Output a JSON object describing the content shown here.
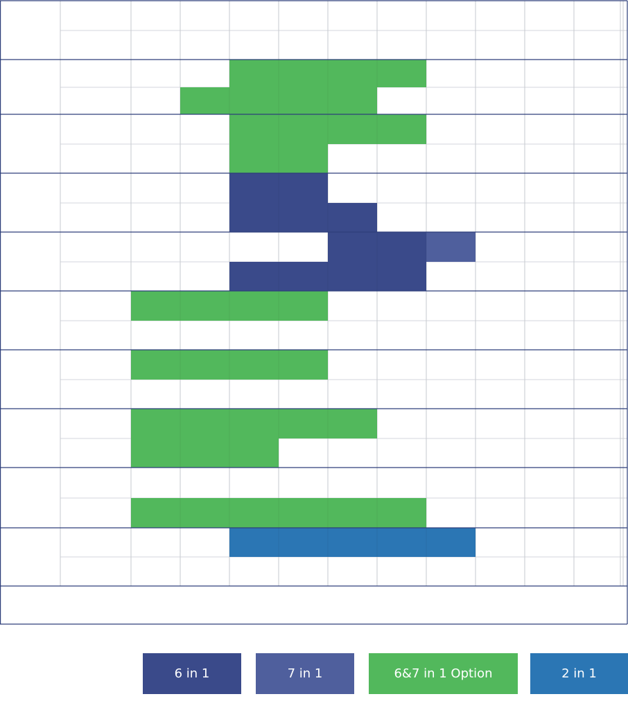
{
  "colors": {
    "six_in_one": "#3a4a8a",
    "seven_in_one": "#4f5f9d",
    "option_green": "#52b85c",
    "two_in_one": "#2b76b4",
    "grid_minor": "#d3d6dc",
    "grid_major": "#2d3f7a"
  },
  "legend": {
    "items": [
      {
        "key": "six_in_one",
        "label": "6 in 1"
      },
      {
        "key": "seven_in_one",
        "label": "7 in 1"
      },
      {
        "key": "option_green",
        "label": "6&7 in 1 Option"
      },
      {
        "key": "two_in_one",
        "label": "2 in 1"
      }
    ]
  },
  "chart_data": {
    "type": "bar",
    "orientation": "horizontal-gantt",
    "title": "",
    "xlabel": "",
    "ylabel": "",
    "xlim": [
      0,
      10
    ],
    "grid": true,
    "legend_position": "bottom-right",
    "rows": 10,
    "sub_rows_per_row": 2,
    "bars": [
      {
        "row": 1,
        "sub": 0,
        "start": 2,
        "end": 6,
        "series": "option_green"
      },
      {
        "row": 1,
        "sub": 1,
        "start": 1,
        "end": 5,
        "series": "option_green"
      },
      {
        "row": 2,
        "sub": 0,
        "start": 2,
        "end": 6,
        "series": "option_green"
      },
      {
        "row": 2,
        "sub": 1,
        "start": 2,
        "end": 4,
        "series": "option_green"
      },
      {
        "row": 3,
        "sub": 0,
        "start": 2,
        "end": 4,
        "series": "six_in_one"
      },
      {
        "row": 3,
        "sub": 1,
        "start": 2,
        "end": 5,
        "series": "six_in_one"
      },
      {
        "row": 4,
        "sub": 0,
        "start": 4,
        "end": 6,
        "series": "six_in_one"
      },
      {
        "row": 4,
        "sub": 0,
        "start": 6,
        "end": 7,
        "series": "seven_in_one"
      },
      {
        "row": 4,
        "sub": 1,
        "start": 2,
        "end": 6,
        "series": "six_in_one"
      },
      {
        "row": 5,
        "sub": 0,
        "start": 0,
        "end": 4,
        "series": "option_green"
      },
      {
        "row": 6,
        "sub": 0,
        "start": 0,
        "end": 4,
        "series": "option_green"
      },
      {
        "row": 7,
        "sub": 0,
        "start": 0,
        "end": 5,
        "series": "option_green"
      },
      {
        "row": 7,
        "sub": 1,
        "start": 0,
        "end": 3,
        "series": "option_green"
      },
      {
        "row": 8,
        "sub": 1,
        "start": 0,
        "end": 6,
        "series": "option_green"
      },
      {
        "row": 9,
        "sub": 0,
        "start": 2,
        "end": 7,
        "series": "two_in_one"
      }
    ]
  }
}
